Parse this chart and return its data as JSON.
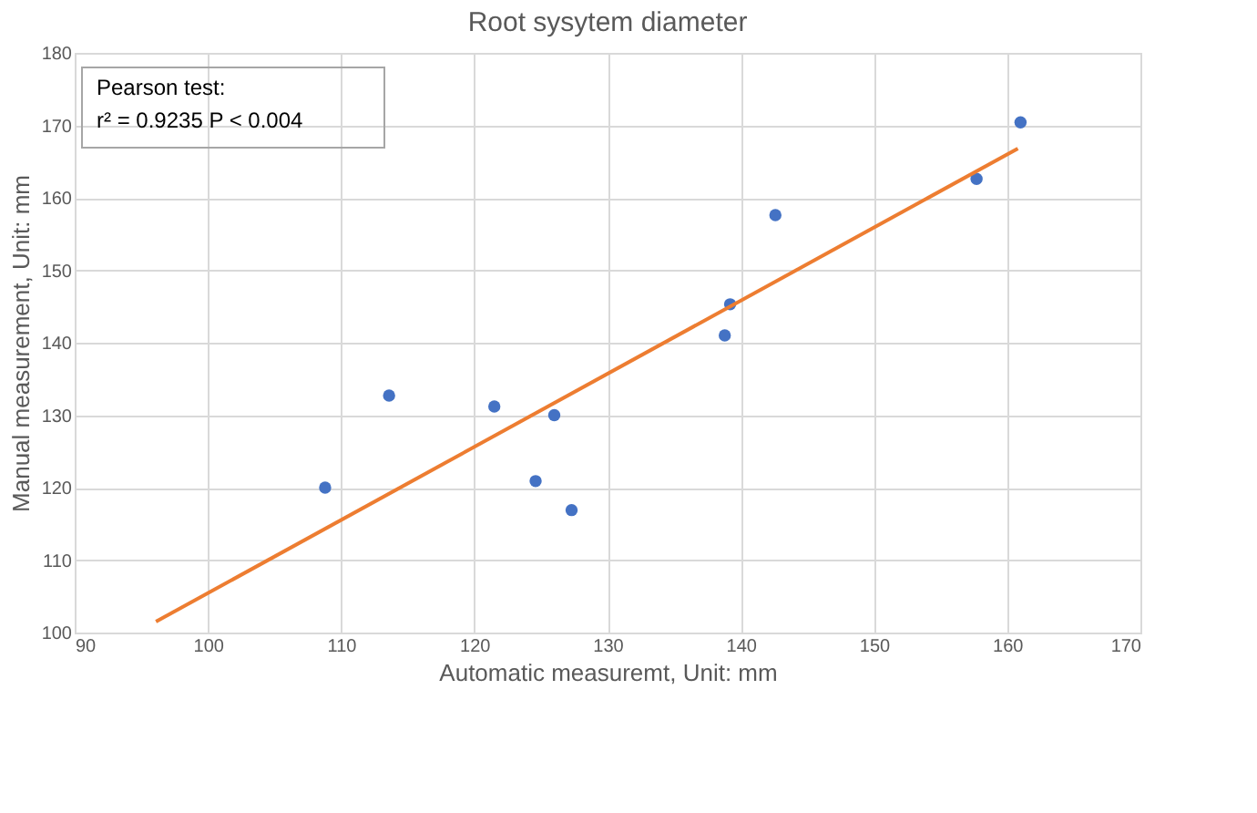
{
  "chart_data": {
    "type": "scatter",
    "title": "Root sysytem diameter",
    "xlabel": "Automatic measuremt, Unit: mm",
    "ylabel": "Manual measurement, Unit: mm",
    "xlim": [
      90,
      170
    ],
    "xticks": [
      90,
      100,
      110,
      120,
      130,
      140,
      150,
      160,
      170
    ],
    "ylim": [
      100,
      180
    ],
    "yticks": [
      100,
      110,
      120,
      130,
      140,
      150,
      160,
      170,
      180
    ],
    "grid": true,
    "series": [
      {
        "color": "#4472c4",
        "marker": "circle",
        "x": [
          108.8,
          113.6,
          121.5,
          126.0,
          124.6,
          127.3,
          138.8,
          139.2,
          142.6,
          157.7,
          161.0
        ],
        "values": [
          120,
          132.7,
          131.2,
          130,
          120.9,
          116.9,
          141,
          145.3,
          157.6,
          162.6,
          170.4
        ]
      },
      {
        "type": "line",
        "color": "#ed7d31",
        "x": [
          96.1,
          160.8
        ],
        "values": [
          101.5,
          166.8
        ]
      }
    ],
    "annotations": [
      "Pearson test:",
      "r² = 0.9235     P < 0.004"
    ]
  }
}
